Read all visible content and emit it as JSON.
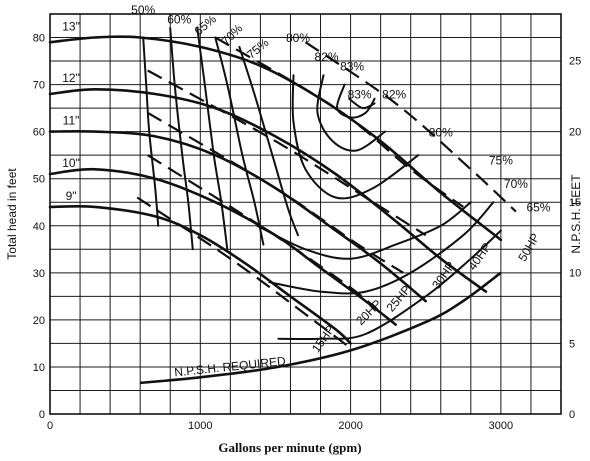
{
  "chart_data": {
    "type": "line",
    "title": "",
    "xlabel": "Gallons per minute (gpm)",
    "ylabel": "Total head in feet",
    "y2label": "N.P.S.H. FEET",
    "xlim": [
      0,
      3400
    ],
    "ylim": [
      0,
      85
    ],
    "y2lim": [
      0,
      28.3
    ],
    "x_ticks": [
      "0",
      "1000",
      "2000",
      "3000"
    ],
    "x_tick_values": [
      0,
      1000,
      2000,
      3000
    ],
    "y_ticks": [
      "0",
      "10",
      "20",
      "30",
      "40",
      "50",
      "60",
      "70",
      "80"
    ],
    "y_tick_values": [
      0,
      10,
      20,
      30,
      40,
      50,
      60,
      70,
      80
    ],
    "y2_ticks": [
      "0",
      "5",
      "10",
      "15",
      "20",
      "25"
    ],
    "y2_tick_values": [
      0,
      5,
      10,
      15,
      20,
      25
    ],
    "grid": true,
    "impeller_curves": [
      {
        "name": "13\"",
        "points": [
          [
            0,
            79
          ],
          [
            300,
            80
          ],
          [
            600,
            80
          ],
          [
            1000,
            78
          ],
          [
            1400,
            74
          ],
          [
            1800,
            67
          ],
          [
            2200,
            58
          ],
          [
            2600,
            47
          ],
          [
            3000,
            37
          ]
        ]
      },
      {
        "name": "12\"",
        "points": [
          [
            0,
            68
          ],
          [
            300,
            69
          ],
          [
            700,
            68
          ],
          [
            1100,
            65
          ],
          [
            1500,
            59
          ],
          [
            1900,
            51
          ],
          [
            2300,
            41
          ],
          [
            2600,
            33
          ],
          [
            2900,
            26
          ]
        ]
      },
      {
        "name": "11\"",
        "points": [
          [
            0,
            60
          ],
          [
            300,
            60
          ],
          [
            700,
            59
          ],
          [
            1100,
            55
          ],
          [
            1500,
            48
          ],
          [
            1900,
            39
          ],
          [
            2200,
            32
          ],
          [
            2500,
            24
          ]
        ]
      },
      {
        "name": "10\"",
        "points": [
          [
            0,
            51
          ],
          [
            300,
            52
          ],
          [
            700,
            50
          ],
          [
            1100,
            45
          ],
          [
            1500,
            38
          ],
          [
            1800,
            31
          ],
          [
            2100,
            24
          ],
          [
            2300,
            19
          ]
        ]
      },
      {
        "name": "9\"",
        "points": [
          [
            0,
            44
          ],
          [
            300,
            44
          ],
          [
            700,
            42
          ],
          [
            1000,
            38
          ],
          [
            1300,
            32
          ],
          [
            1600,
            25
          ],
          [
            1900,
            18
          ],
          [
            2000,
            15
          ]
        ]
      }
    ],
    "efficiency_curves": [
      {
        "name": "50%",
        "points": [
          [
            620,
            80
          ],
          [
            640,
            70
          ],
          [
            660,
            60
          ],
          [
            700,
            48
          ],
          [
            720,
            40
          ]
        ]
      },
      {
        "name": "60%",
        "points": [
          [
            800,
            82
          ],
          [
            830,
            70
          ],
          [
            880,
            55
          ],
          [
            920,
            45
          ],
          [
            950,
            35
          ]
        ]
      },
      {
        "name": "65%",
        "points": [
          [
            980,
            82
          ],
          [
            1030,
            70
          ],
          [
            1090,
            55
          ],
          [
            1140,
            45
          ],
          [
            1180,
            35
          ]
        ]
      },
      {
        "name": "70%",
        "points": [
          [
            1100,
            80
          ],
          [
            1180,
            70
          ],
          [
            1280,
            55
          ],
          [
            1360,
            45
          ],
          [
            1420,
            36
          ]
        ]
      },
      {
        "name": "75%",
        "points": [
          [
            1260,
            78
          ],
          [
            1360,
            68
          ],
          [
            1480,
            55
          ],
          [
            1580,
            44
          ],
          [
            1650,
            38
          ]
        ]
      },
      {
        "name": "80%",
        "points": [
          [
            1620,
            72
          ],
          [
            1620,
            62
          ],
          [
            1700,
            52
          ],
          [
            1900,
            46
          ],
          [
            2150,
            48
          ],
          [
            2450,
            55
          ]
        ]
      },
      {
        "name": "82%",
        "points": [
          [
            1820,
            72
          ],
          [
            1780,
            64
          ],
          [
            1880,
            58
          ],
          [
            2040,
            56
          ],
          [
            2230,
            60
          ]
        ]
      },
      {
        "name": "83%",
        "points": [
          [
            1960,
            70
          ],
          [
            1910,
            65
          ],
          [
            2000,
            63
          ],
          [
            2100,
            64
          ],
          [
            2160,
            67
          ]
        ]
      },
      {
        "name": "83%",
        "points": [
          [
            1990,
            67
          ],
          [
            2080,
            65
          ],
          [
            2160,
            66
          ]
        ]
      },
      {
        "name": "75%",
        "points": [
          [
            1380,
            40
          ],
          [
            1700,
            35
          ],
          [
            2000,
            33
          ],
          [
            2300,
            36
          ],
          [
            2600,
            40
          ],
          [
            2800,
            45
          ]
        ]
      },
      {
        "name": "70%",
        "points": [
          [
            1460,
            28
          ],
          [
            1800,
            26
          ],
          [
            2100,
            26
          ],
          [
            2400,
            30
          ],
          [
            2750,
            38
          ],
          [
            2950,
            45
          ]
        ]
      },
      {
        "name": "65%",
        "points": [
          [
            1520,
            16
          ],
          [
            1800,
            16
          ],
          [
            2100,
            17
          ],
          [
            2500,
            25
          ],
          [
            2800,
            33
          ],
          [
            3000,
            39
          ]
        ]
      }
    ],
    "power_lines": [
      {
        "name": "15HP",
        "points": [
          [
            580,
            46
          ],
          [
            1200,
            33
          ],
          [
            1750,
            20
          ],
          [
            2000,
            14
          ]
        ]
      },
      {
        "name": "20HP",
        "points": [
          [
            650,
            55
          ],
          [
            1400,
            40
          ],
          [
            1950,
            28
          ],
          [
            2150,
            23
          ]
        ]
      },
      {
        "name": "25HP",
        "points": [
          [
            650,
            64
          ],
          [
            1500,
            48
          ],
          [
            2050,
            36
          ],
          [
            2350,
            30
          ]
        ]
      },
      {
        "name": "30HP",
        "points": [
          [
            650,
            73
          ],
          [
            1500,
            58
          ],
          [
            2150,
            45
          ],
          [
            2500,
            38
          ]
        ]
      },
      {
        "name": "40HP",
        "points": [
          [
            1100,
            80
          ],
          [
            1900,
            65
          ],
          [
            2400,
            52
          ],
          [
            2750,
            44
          ]
        ]
      },
      {
        "name": "50HP",
        "points": [
          [
            1700,
            79
          ],
          [
            2300,
            66
          ],
          [
            2800,
            52
          ],
          [
            3100,
            43
          ]
        ]
      }
    ],
    "npsh_required": {
      "name": "N.P.S.H. REQUIRED",
      "points": [
        [
          600,
          2.2
        ],
        [
          1000,
          2.6
        ],
        [
          1500,
          3.3
        ],
        [
          2000,
          4.5
        ],
        [
          2500,
          6.5
        ],
        [
          2750,
          8.0
        ],
        [
          3000,
          10.0
        ]
      ]
    }
  },
  "labels": {
    "impeller": [
      "13\"",
      "12\"",
      "11\"",
      "10\"",
      "9\""
    ],
    "efficiency": [
      "50%",
      "60%",
      "65%",
      "70%",
      "75%",
      "80%",
      "82%",
      "83%",
      "83%",
      "82%",
      "80%",
      "75%",
      "70%",
      "65%"
    ],
    "power": [
      "15HP",
      "20HP",
      "25HP",
      "30HP",
      "40HP",
      "50HP"
    ],
    "npsh": "N.P.S.H. REQUIRED"
  }
}
